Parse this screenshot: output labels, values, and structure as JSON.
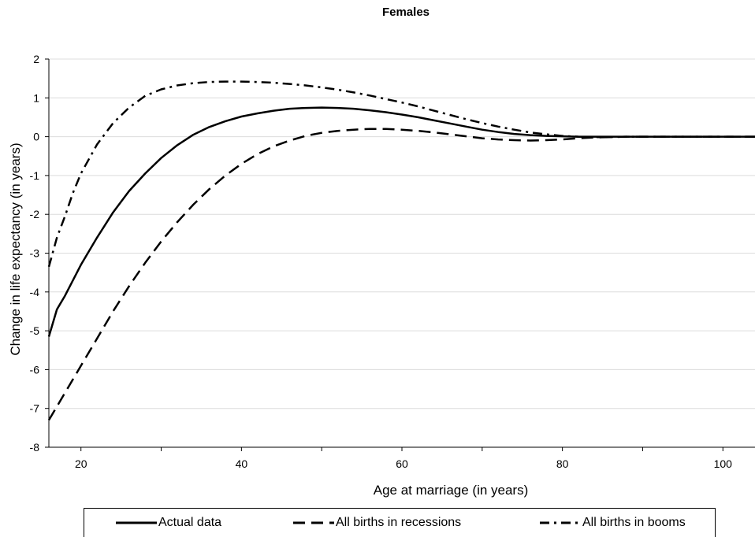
{
  "chart_data": {
    "type": "line",
    "title": "Females",
    "xlabel": "Age at marriage (in years)",
    "ylabel": "Change in life expectancy (in years)",
    "xlim": [
      16,
      104
    ],
    "ylim": [
      -8,
      2
    ],
    "x_ticks": [
      20,
      40,
      60,
      80,
      100
    ],
    "y_ticks": [
      2,
      1,
      0,
      -1,
      -2,
      -3,
      -4,
      -5,
      -6,
      -7,
      -8
    ],
    "grid": "horizontal",
    "legend_position": "bottom",
    "series": [
      {
        "name": "Actual data",
        "style": "solid",
        "x": [
          16,
          17,
          18,
          20,
          22,
          24,
          26,
          28,
          30,
          32,
          34,
          36,
          38,
          40,
          42,
          44,
          46,
          48,
          50,
          52,
          54,
          56,
          58,
          60,
          62,
          64,
          66,
          68,
          70,
          72,
          74,
          76,
          78,
          80,
          82,
          84,
          86,
          88,
          90,
          92,
          96,
          100,
          104
        ],
        "values": [
          -5.15,
          -4.45,
          -4.1,
          -3.3,
          -2.6,
          -1.95,
          -1.4,
          -0.95,
          -0.55,
          -0.22,
          0.05,
          0.25,
          0.4,
          0.52,
          0.6,
          0.67,
          0.72,
          0.74,
          0.75,
          0.74,
          0.72,
          0.68,
          0.63,
          0.57,
          0.5,
          0.42,
          0.34,
          0.26,
          0.18,
          0.12,
          0.07,
          0.04,
          0.02,
          0.01,
          0.0,
          0.0,
          0.0,
          0.0,
          0.0,
          0.0,
          0.0,
          0.0,
          0.0
        ]
      },
      {
        "name": "All births in recessions",
        "style": "dashed",
        "x": [
          16,
          18,
          20,
          22,
          24,
          26,
          28,
          30,
          32,
          34,
          36,
          38,
          40,
          42,
          44,
          46,
          48,
          50,
          52,
          54,
          56,
          58,
          60,
          62,
          64,
          66,
          68,
          70,
          72,
          74,
          76,
          78,
          80,
          82,
          84,
          86,
          88,
          90,
          92,
          96,
          100,
          104
        ],
        "values": [
          -7.3,
          -6.6,
          -5.9,
          -5.2,
          -4.5,
          -3.85,
          -3.25,
          -2.7,
          -2.2,
          -1.75,
          -1.35,
          -1.0,
          -0.7,
          -0.45,
          -0.25,
          -0.1,
          0.02,
          0.1,
          0.15,
          0.18,
          0.2,
          0.2,
          0.18,
          0.15,
          0.11,
          0.06,
          0.01,
          -0.04,
          -0.07,
          -0.09,
          -0.1,
          -0.09,
          -0.07,
          -0.04,
          -0.02,
          -0.01,
          0.0,
          0.0,
          0.0,
          0.0,
          0.0,
          0.0
        ]
      },
      {
        "name": "All births in booms",
        "style": "dashdot",
        "x": [
          16,
          17,
          18,
          19,
          20,
          22,
          24,
          26,
          28,
          30,
          32,
          34,
          36,
          38,
          40,
          42,
          44,
          46,
          48,
          50,
          52,
          54,
          56,
          58,
          60,
          62,
          64,
          66,
          68,
          70,
          72,
          74,
          76,
          78,
          80,
          82,
          84,
          86,
          88,
          90,
          92,
          96,
          100,
          104
        ],
        "values": [
          -3.35,
          -2.6,
          -2.05,
          -1.45,
          -0.95,
          -0.2,
          0.35,
          0.75,
          1.05,
          1.22,
          1.32,
          1.38,
          1.41,
          1.42,
          1.42,
          1.41,
          1.39,
          1.36,
          1.32,
          1.27,
          1.21,
          1.14,
          1.06,
          0.97,
          0.88,
          0.78,
          0.67,
          0.56,
          0.45,
          0.35,
          0.26,
          0.18,
          0.11,
          0.06,
          0.02,
          0.0,
          -0.01,
          -0.01,
          0.0,
          0.0,
          0.0,
          0.0,
          0.0,
          0.0
        ]
      }
    ]
  }
}
